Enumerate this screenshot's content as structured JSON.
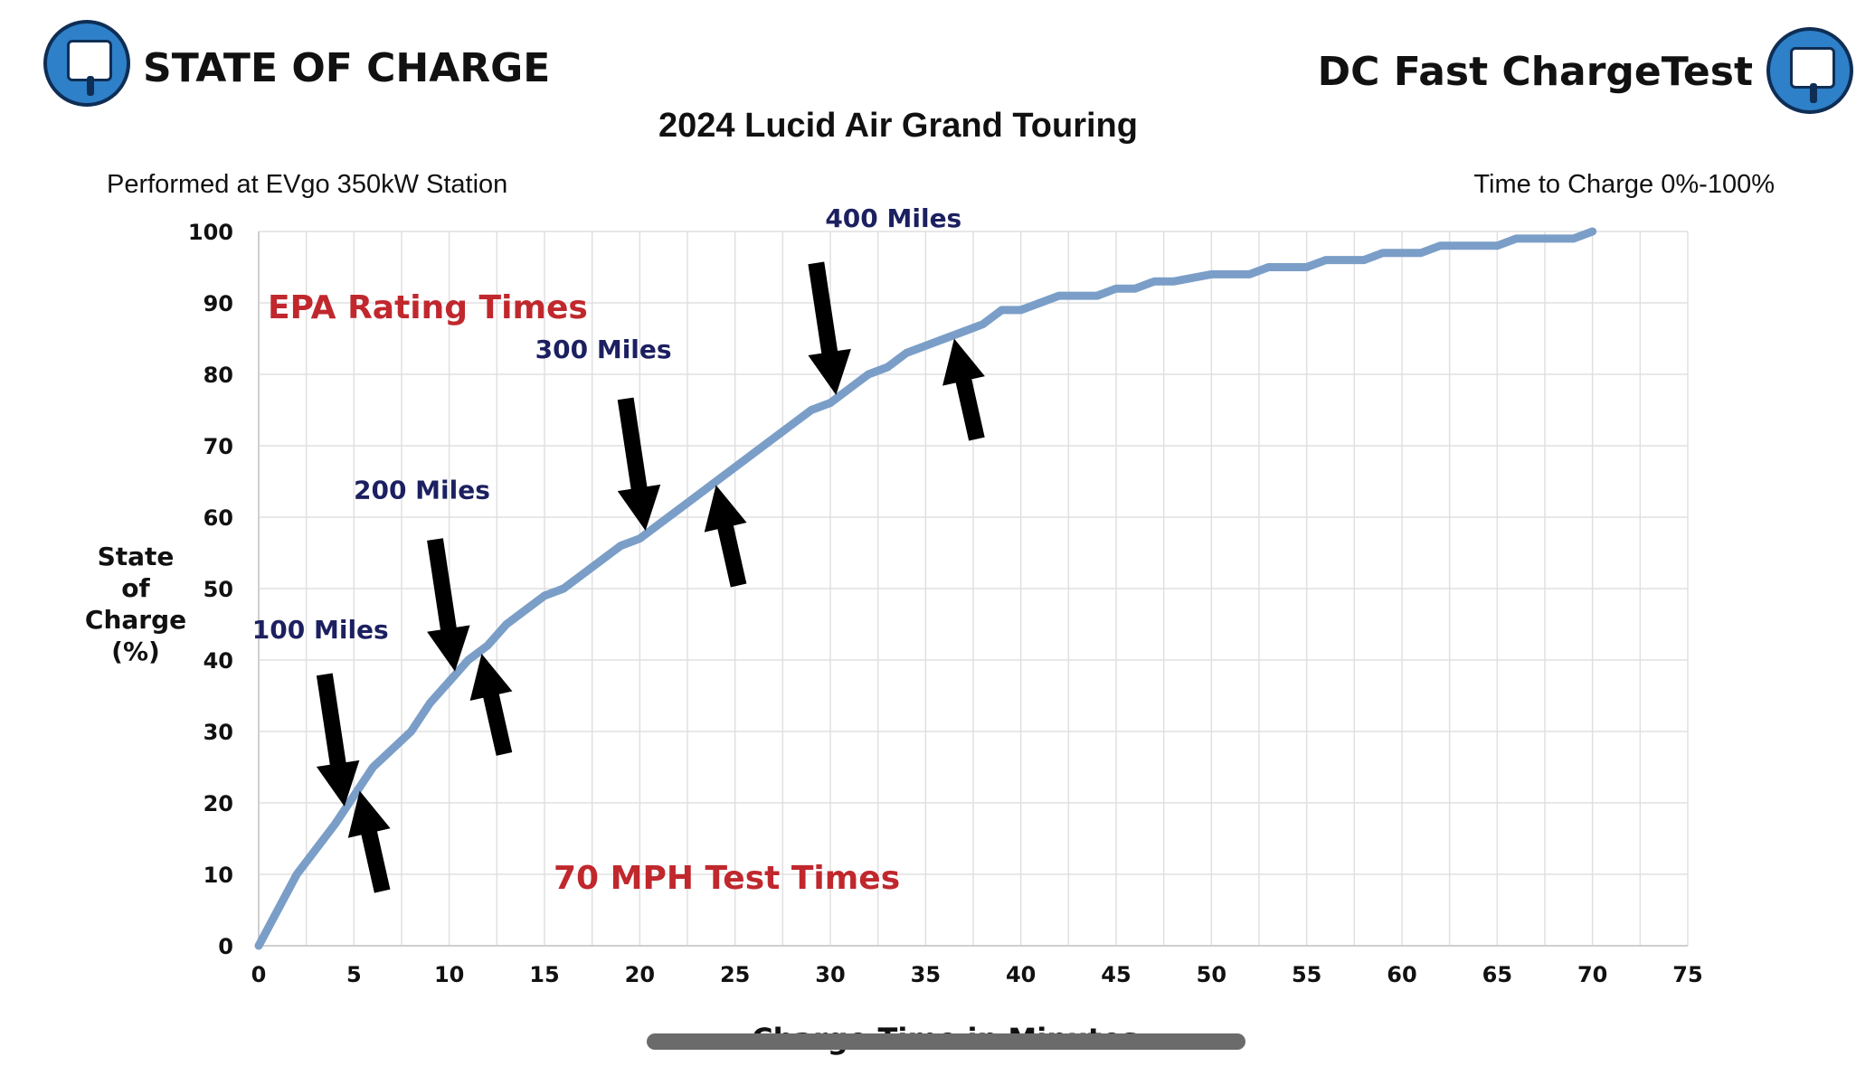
{
  "header": {
    "brand_left": "STATE OF CHARGE",
    "brand_right": "DC Fast ChargeTest",
    "title": "2024 Lucid Air Grand Touring",
    "subtitle_left": "Performed at EVgo 350kW Station",
    "subtitle_right": "Time to Charge 0%-100%"
  },
  "colors": {
    "line": "#7a9ec7",
    "grid": "#e0e0e0",
    "red_text": "#c0282d",
    "navy_text": "#1c2060",
    "logo": "#2e80c8"
  },
  "chart_data": {
    "type": "line",
    "title": "2024 Lucid Air Grand Touring",
    "xlabel": "Charge Time in Minutes",
    "ylabel": "State of Charge (%)",
    "xlim": [
      0,
      75
    ],
    "ylim": [
      0,
      100
    ],
    "xticks": [
      "0",
      "5",
      "10",
      "15",
      "20",
      "25",
      "30",
      "35",
      "40",
      "45",
      "50",
      "55",
      "60",
      "65",
      "70",
      "75"
    ],
    "yticks": [
      "0",
      "10",
      "20",
      "30",
      "40",
      "50",
      "60",
      "70",
      "80",
      "90",
      "100"
    ],
    "grid": true,
    "series": [
      {
        "x": [
          0,
          2,
          4,
          5,
          6,
          8,
          9,
          10,
          11,
          12,
          13,
          15,
          16,
          18,
          19,
          20,
          21,
          22,
          24,
          26,
          28,
          29,
          30,
          31,
          32,
          33,
          34,
          36,
          37,
          38,
          39,
          40,
          42,
          44,
          45,
          46,
          47,
          48,
          50,
          51,
          52,
          53,
          54,
          55,
          56,
          57,
          58,
          59,
          60,
          61,
          62,
          63,
          64,
          65,
          66,
          67,
          68,
          69,
          70
        ],
        "y": [
          0,
          10,
          17,
          21,
          25,
          30,
          34,
          37,
          40,
          42,
          45,
          49,
          50,
          54,
          56,
          57,
          59,
          61,
          65,
          69,
          73,
          75,
          76,
          78,
          80,
          81,
          83,
          85,
          86,
          87,
          89,
          89,
          91,
          91,
          92,
          92,
          93,
          93,
          94,
          94,
          94,
          95,
          95,
          95,
          96,
          96,
          96,
          97,
          97,
          97,
          98,
          98,
          98,
          98,
          99,
          99,
          99,
          99,
          100
        ]
      }
    ],
    "annotations": {
      "epa_label": "EPA Rating Times",
      "test_label": "70 MPH Test Times",
      "miles": [
        {
          "label": "100 Miles",
          "epa_min": 4.5,
          "test_min": 5.3
        },
        {
          "label": "200 Miles",
          "epa_min": 10.3,
          "test_min": 11.7
        },
        {
          "label": "300 Miles",
          "epa_min": 20.3,
          "test_min": 24.0
        },
        {
          "label": "400 Miles",
          "epa_min": 30.3,
          "test_min": 36.5
        }
      ]
    }
  }
}
